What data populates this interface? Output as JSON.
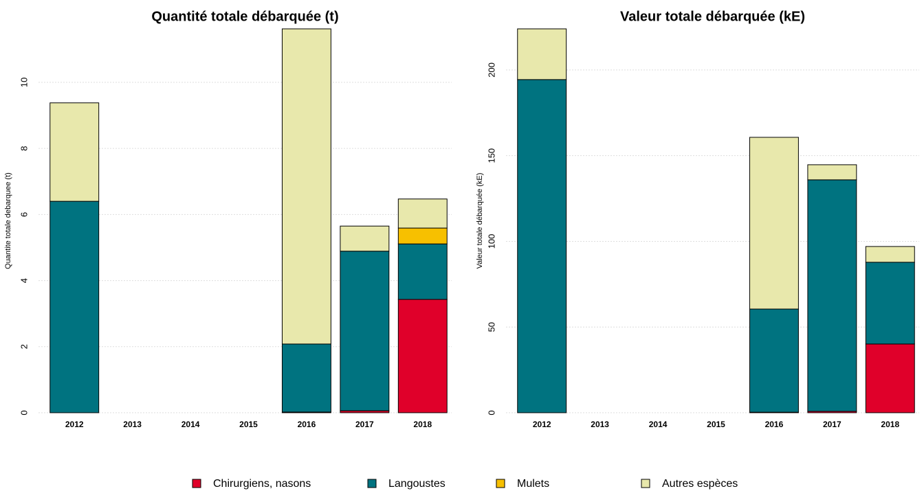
{
  "chart_data": [
    {
      "type": "bar",
      "stacked": true,
      "title": "Quantité totale débarquée (t)",
      "y_label": "Quantite totale debarquee (t)",
      "categories": [
        "2012",
        "2013",
        "2014",
        "2015",
        "2016",
        "2017",
        "2018"
      ],
      "series": [
        {
          "name": "Chirurgiens, nasons",
          "color": "#e0002a",
          "values": [
            0,
            0,
            0,
            0,
            0.02,
            0.06,
            3.43
          ]
        },
        {
          "name": "Langoustes",
          "color": "#007380",
          "values": [
            6.4,
            0,
            0,
            0,
            2.06,
            4.83,
            1.68
          ]
        },
        {
          "name": "Mulets",
          "color": "#f7c000",
          "values": [
            0,
            0,
            0,
            0,
            0,
            0,
            0.48
          ]
        },
        {
          "name": "Autres espèces",
          "color": "#e8e8ac",
          "values": [
            2.98,
            0,
            0,
            0,
            9.54,
            0.76,
            0.88
          ]
        }
      ],
      "ylim": [
        0,
        11.62
      ],
      "yticks": [
        0,
        2,
        4,
        6,
        8,
        10
      ],
      "grid": true
    },
    {
      "type": "bar",
      "stacked": true,
      "title": "Valeur totale débarquée (kE)",
      "y_label": "Valeur totale débarquée (kE)",
      "categories": [
        "2012",
        "2013",
        "2014",
        "2015",
        "2016",
        "2017",
        "2018"
      ],
      "series": [
        {
          "values": [
            0,
            0,
            0,
            0,
            0.3,
            0.8,
            40.1
          ]
        },
        {
          "values": [
            194.4,
            0,
            0,
            0,
            60.2,
            135.1,
            47.7
          ]
        },
        {
          "values": [
            0,
            0,
            0,
            0,
            0,
            0,
            0
          ]
        },
        {
          "values": [
            29.6,
            0,
            0,
            0,
            100.2,
            8.8,
            9.2
          ]
        }
      ],
      "ylim": [
        0,
        224
      ],
      "yticks": [
        0,
        50,
        100,
        150,
        200
      ],
      "grid": true
    }
  ]
}
